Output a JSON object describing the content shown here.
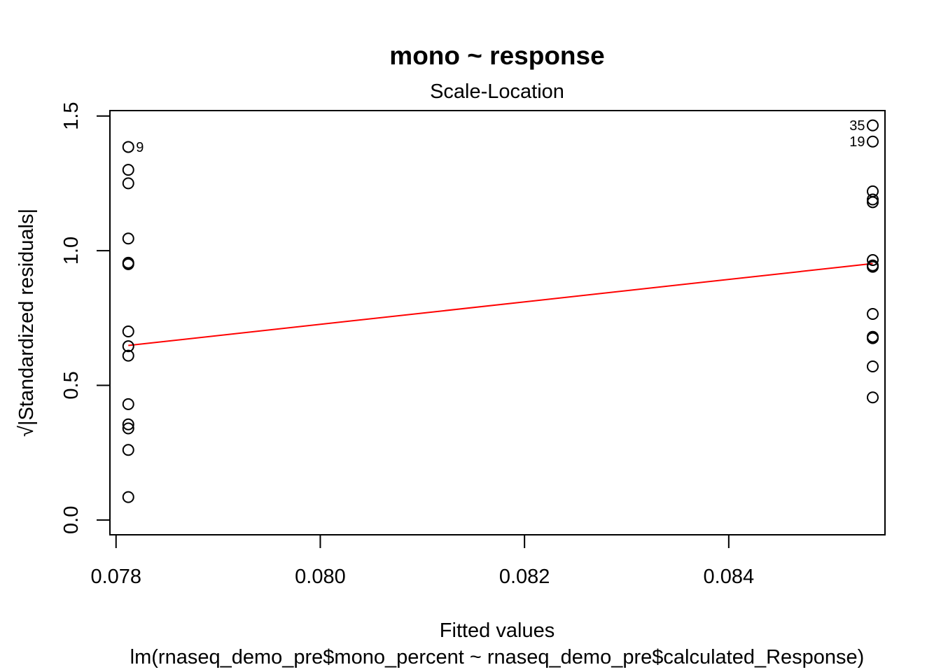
{
  "chart_data": {
    "type": "scatter",
    "title": "mono ~ response",
    "subtitle": "Scale-Location",
    "xlabel": "Fitted values",
    "xlabel_caption": "lm(rnaseq_demo_pre$mono_percent ~ rnaseq_demo_pre$calculated_Response)",
    "ylabel": "√|Standardized residuals|",
    "xlim": [
      0.07794,
      0.08553
    ],
    "ylim": [
      -0.055,
      1.52
    ],
    "x_ticks": [
      {
        "value": 0.078,
        "label": "0.078"
      },
      {
        "value": 0.08,
        "label": "0.080"
      },
      {
        "value": 0.082,
        "label": "0.082"
      },
      {
        "value": 0.084,
        "label": "0.084"
      }
    ],
    "y_ticks": [
      {
        "value": 0.0,
        "label": "0.0"
      },
      {
        "value": 0.5,
        "label": "0.5"
      },
      {
        "value": 1.0,
        "label": "1.0"
      },
      {
        "value": 1.5,
        "label": "1.5"
      }
    ],
    "series": [
      {
        "marker": "open-circle",
        "color": "#000000",
        "points": [
          {
            "x": 0.07812,
            "y": 1.385,
            "label": "9"
          },
          {
            "x": 0.07812,
            "y": 1.3
          },
          {
            "x": 0.07812,
            "y": 1.25
          },
          {
            "x": 0.07812,
            "y": 1.045
          },
          {
            "x": 0.07812,
            "y": 0.955
          },
          {
            "x": 0.07812,
            "y": 0.95
          },
          {
            "x": 0.07812,
            "y": 0.7
          },
          {
            "x": 0.07812,
            "y": 0.645
          },
          {
            "x": 0.07812,
            "y": 0.61
          },
          {
            "x": 0.07812,
            "y": 0.43
          },
          {
            "x": 0.07812,
            "y": 0.355
          },
          {
            "x": 0.07812,
            "y": 0.34
          },
          {
            "x": 0.07812,
            "y": 0.26
          },
          {
            "x": 0.07812,
            "y": 0.085
          },
          {
            "x": 0.08541,
            "y": 1.465,
            "label": "35"
          },
          {
            "x": 0.08541,
            "y": 1.405,
            "label": "19"
          },
          {
            "x": 0.08541,
            "y": 1.22
          },
          {
            "x": 0.08541,
            "y": 1.19
          },
          {
            "x": 0.08541,
            "y": 1.18
          },
          {
            "x": 0.08541,
            "y": 0.965
          },
          {
            "x": 0.08541,
            "y": 0.945
          },
          {
            "x": 0.08541,
            "y": 0.94
          },
          {
            "x": 0.08541,
            "y": 0.765
          },
          {
            "x": 0.08541,
            "y": 0.68
          },
          {
            "x": 0.08541,
            "y": 0.675
          },
          {
            "x": 0.08541,
            "y": 0.57
          },
          {
            "x": 0.08541,
            "y": 0.455
          }
        ]
      }
    ],
    "smoother": {
      "color": "#ff0000",
      "points": [
        {
          "x": 0.07812,
          "y": 0.648
        },
        {
          "x": 0.08541,
          "y": 0.952
        }
      ]
    }
  }
}
